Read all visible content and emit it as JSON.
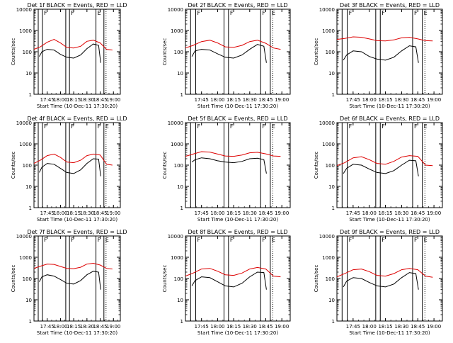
{
  "colors": {
    "events": "#000000",
    "lld": "#dd0000",
    "frame": "#000000"
  },
  "chart_data": [
    {
      "type": "line",
      "title": "Det 1f BLACK = Events, RED = LLD",
      "xlabel": "Start Time (10-Dec-11 17:30:20)",
      "ylabel": "Counts/sec",
      "x_ticks": [
        "17:45",
        "18:00",
        "18:15",
        "18:30",
        "18:45",
        "19:00"
      ],
      "y_ticks": [
        "1",
        "10",
        "100",
        "1000",
        "10000"
      ],
      "y_scale": "log",
      "ylim": [
        1,
        10000
      ],
      "markers": [
        "F",
        "F",
        "E"
      ],
      "series": [
        {
          "color": "red",
          "x": [
            17.5,
            17.62,
            17.75,
            17.88,
            18.0,
            18.12,
            18.25,
            18.38,
            18.5,
            18.62,
            18.75,
            18.87,
            18.98
          ],
          "y": [
            130,
            170,
            280,
            380,
            260,
            160,
            150,
            180,
            310,
            350,
            260,
            130,
            120
          ]
        },
        {
          "color": "black",
          "x": [
            17.6,
            17.65,
            17.75,
            17.88,
            18.0,
            18.12,
            18.25,
            18.38,
            18.5,
            18.62,
            18.72,
            18.76
          ],
          "y": [
            60,
            100,
            130,
            120,
            75,
            55,
            50,
            70,
            140,
            230,
            200,
            30
          ]
        }
      ]
    },
    {
      "type": "line",
      "title": "Det 2f BLACK = Events, RED = LLD",
      "xlabel": "Start Time (10-Dec-11 17:30:20)",
      "ylabel": "Counts/sec",
      "x_ticks": [
        "17:45",
        "18:00",
        "18:15",
        "18:30",
        "18:45",
        "19:00"
      ],
      "y_ticks": [
        "1",
        "10",
        "100",
        "1000",
        "10000"
      ],
      "y_scale": "log",
      "ylim": [
        1,
        10000
      ],
      "markers": [
        "F",
        "F",
        "F",
        "E"
      ],
      "series": [
        {
          "color": "red",
          "x": [
            17.5,
            17.62,
            17.75,
            17.88,
            18.0,
            18.12,
            18.25,
            18.38,
            18.5,
            18.62,
            18.75,
            18.87,
            18.98
          ],
          "y": [
            150,
            200,
            300,
            350,
            260,
            170,
            160,
            200,
            300,
            350,
            250,
            150,
            130
          ]
        },
        {
          "color": "black",
          "x": [
            17.6,
            17.65,
            17.75,
            17.88,
            18.0,
            18.12,
            18.25,
            18.38,
            18.5,
            18.62,
            18.72,
            18.76
          ],
          "y": [
            60,
            110,
            130,
            120,
            80,
            55,
            50,
            70,
            130,
            220,
            180,
            30
          ]
        }
      ]
    },
    {
      "type": "line",
      "title": "Det 3f BLACK = Events, RED = LLD",
      "xlabel": "Start Time (10-Dec-11 17:30:20)",
      "ylabel": "Counts/sec",
      "x_ticks": [
        "17:45",
        "18:00",
        "18:15",
        "18:30",
        "18:45",
        "19:00"
      ],
      "y_ticks": [
        "1",
        "10",
        "100",
        "1000",
        "10000"
      ],
      "y_scale": "log",
      "ylim": [
        1,
        10000
      ],
      "markers": [
        "F",
        "F",
        "F",
        "E"
      ],
      "series": [
        {
          "color": "red",
          "x": [
            17.5,
            17.62,
            17.75,
            17.88,
            18.0,
            18.12,
            18.25,
            18.38,
            18.5,
            18.62,
            18.75,
            18.87,
            18.98
          ],
          "y": [
            380,
            420,
            500,
            480,
            400,
            330,
            320,
            360,
            450,
            480,
            400,
            330,
            320
          ]
        },
        {
          "color": "black",
          "x": [
            17.6,
            17.65,
            17.75,
            17.88,
            18.0,
            18.12,
            18.25,
            18.38,
            18.5,
            18.62,
            18.72,
            18.76
          ],
          "y": [
            40,
            70,
            110,
            100,
            60,
            45,
            40,
            55,
            110,
            190,
            170,
            30
          ]
        }
      ]
    },
    {
      "type": "line",
      "title": "Det 4f BLACK = Events, RED = LLD",
      "xlabel": "Start Time (10-Dec-11 17:30:20)",
      "ylabel": "Counts/sec",
      "x_ticks": [
        "17:45",
        "18:00",
        "18:15",
        "18:30",
        "18:45",
        "19:00"
      ],
      "y_ticks": [
        "1",
        "10",
        "100",
        "1000",
        "10000"
      ],
      "y_scale": "log",
      "ylim": [
        1,
        10000
      ],
      "markers": [
        "F",
        "F",
        "F",
        "E"
      ],
      "series": [
        {
          "color": "red",
          "x": [
            17.5,
            17.62,
            17.75,
            17.88,
            18.0,
            18.12,
            18.25,
            18.38,
            18.5,
            18.62,
            18.75,
            18.87,
            18.98
          ],
          "y": [
            120,
            170,
            280,
            330,
            230,
            140,
            130,
            170,
            280,
            330,
            300,
            110,
            100
          ]
        },
        {
          "color": "black",
          "x": [
            17.6,
            17.65,
            17.75,
            17.88,
            18.0,
            18.12,
            18.25,
            18.38,
            18.5,
            18.62,
            18.72,
            18.76
          ],
          "y": [
            45,
            80,
            120,
            110,
            70,
            45,
            40,
            60,
            120,
            200,
            190,
            30
          ]
        }
      ]
    },
    {
      "type": "line",
      "title": "Det 5f BLACK = Events, RED = LLD",
      "xlabel": "Start Time (10-Dec-11 17:30:20)",
      "ylabel": "Counts/sec",
      "x_ticks": [
        "17:45",
        "18:00",
        "18:15",
        "18:30",
        "18:45",
        "19:00"
      ],
      "y_ticks": [
        "1",
        "10",
        "100",
        "1000",
        "10000"
      ],
      "y_scale": "log",
      "ylim": [
        1,
        10000
      ],
      "markers": [
        "F",
        "F",
        "F",
        "E"
      ],
      "series": [
        {
          "color": "red",
          "x": [
            17.5,
            17.62,
            17.75,
            17.88,
            18.0,
            18.12,
            18.25,
            18.38,
            18.5,
            18.62,
            18.75,
            18.87,
            18.98
          ],
          "y": [
            260,
            330,
            430,
            410,
            330,
            270,
            260,
            300,
            380,
            400,
            340,
            270,
            260
          ]
        },
        {
          "color": "black",
          "x": [
            17.6,
            17.65,
            17.75,
            17.88,
            18.0,
            18.12,
            18.25,
            18.38,
            18.5,
            18.62,
            18.72,
            18.76
          ],
          "y": [
            140,
            180,
            220,
            200,
            160,
            140,
            130,
            150,
            200,
            210,
            180,
            40
          ]
        }
      ]
    },
    {
      "type": "line",
      "title": "Det 6f BLACK = Events, RED = LLD",
      "xlabel": "Start Time (10-Dec-11 17:30:20)",
      "ylabel": "Counts/sec",
      "x_ticks": [
        "17:45",
        "18:00",
        "18:15",
        "18:30",
        "18:45",
        "19:00"
      ],
      "y_ticks": [
        "1",
        "10",
        "100",
        "1000",
        "10000"
      ],
      "y_scale": "log",
      "ylim": [
        1,
        10000
      ],
      "markers": [
        "F",
        "F",
        "F",
        "E"
      ],
      "series": [
        {
          "color": "red",
          "x": [
            17.5,
            17.62,
            17.75,
            17.88,
            18.0,
            18.12,
            18.25,
            18.38,
            18.5,
            18.62,
            18.75,
            18.87,
            18.98
          ],
          "y": [
            95,
            130,
            220,
            250,
            180,
            120,
            110,
            150,
            240,
            280,
            260,
            100,
            95
          ]
        },
        {
          "color": "black",
          "x": [
            17.6,
            17.65,
            17.75,
            17.88,
            18.0,
            18.12,
            18.25,
            18.38,
            18.5,
            18.62,
            18.72,
            18.76
          ],
          "y": [
            40,
            70,
            110,
            100,
            65,
            45,
            40,
            55,
            100,
            170,
            160,
            30
          ]
        }
      ]
    },
    {
      "type": "line",
      "title": "Det 7f BLACK = Events, RED = LLD",
      "xlabel": "Start Time (10-Dec-11 17:30:20)",
      "ylabel": "Counts/sec",
      "x_ticks": [
        "17:45",
        "18:00",
        "18:15",
        "18:30",
        "18:45",
        "19:00"
      ],
      "y_ticks": [
        "1",
        "10",
        "100",
        "1000",
        "10000"
      ],
      "y_scale": "log",
      "ylim": [
        1,
        10000
      ],
      "markers": [
        "F",
        "F",
        "F",
        "E"
      ],
      "series": [
        {
          "color": "red",
          "x": [
            17.5,
            17.62,
            17.75,
            17.88,
            18.0,
            18.12,
            18.25,
            18.38,
            18.5,
            18.62,
            18.75,
            18.87,
            18.98
          ],
          "y": [
            300,
            380,
            480,
            460,
            370,
            300,
            290,
            340,
            480,
            520,
            430,
            300,
            280
          ]
        },
        {
          "color": "black",
          "x": [
            17.6,
            17.65,
            17.75,
            17.88,
            18.0,
            18.12,
            18.25,
            18.38,
            18.5,
            18.62,
            18.72,
            18.76
          ],
          "y": [
            70,
            120,
            150,
            130,
            90,
            60,
            55,
            80,
            150,
            220,
            200,
            30
          ]
        }
      ]
    },
    {
      "type": "line",
      "title": "Det 8f BLACK = Events, RED = LLD",
      "xlabel": "Start Time (10-Dec-11 17:30:20)",
      "ylabel": "Counts/sec",
      "x_ticks": [
        "17:45",
        "18:00",
        "18:15",
        "18:30",
        "18:45",
        "19:00"
      ],
      "y_ticks": [
        "1",
        "10",
        "100",
        "1000",
        "10000"
      ],
      "y_scale": "log",
      "ylim": [
        1,
        10000
      ],
      "markers": [
        "F",
        "F",
        "F",
        "E"
      ],
      "series": [
        {
          "color": "red",
          "x": [
            17.5,
            17.62,
            17.75,
            17.88,
            18.0,
            18.12,
            18.25,
            18.38,
            18.5,
            18.62,
            18.75,
            18.87,
            18.98
          ],
          "y": [
            130,
            180,
            280,
            300,
            220,
            150,
            140,
            180,
            280,
            330,
            280,
            130,
            120
          ]
        },
        {
          "color": "black",
          "x": [
            17.6,
            17.65,
            17.75,
            17.88,
            18.0,
            18.12,
            18.25,
            18.38,
            18.5,
            18.62,
            18.72,
            18.76
          ],
          "y": [
            45,
            80,
            120,
            110,
            70,
            45,
            40,
            60,
            120,
            200,
            190,
            30
          ]
        }
      ]
    },
    {
      "type": "line",
      "title": "Det 9f BLACK = Events, RED = LLD",
      "xlabel": "Start Time (10-Dec-11 17:30:20)",
      "ylabel": "Counts/sec",
      "x_ticks": [
        "17:45",
        "18:00",
        "18:15",
        "18:30",
        "18:45",
        "19:00"
      ],
      "y_ticks": [
        "1",
        "10",
        "100",
        "1000",
        "10000"
      ],
      "y_scale": "log",
      "ylim": [
        1,
        10000
      ],
      "markers": [
        "F",
        "F",
        "F",
        "E"
      ],
      "series": [
        {
          "color": "red",
          "x": [
            17.5,
            17.62,
            17.75,
            17.88,
            18.0,
            18.12,
            18.25,
            18.38,
            18.5,
            18.62,
            18.75,
            18.87,
            18.98
          ],
          "y": [
            120,
            170,
            260,
            280,
            210,
            140,
            130,
            170,
            260,
            300,
            260,
            130,
            115
          ]
        },
        {
          "color": "black",
          "x": [
            17.6,
            17.65,
            17.75,
            17.88,
            18.0,
            18.12,
            18.25,
            18.38,
            18.5,
            18.62,
            18.72,
            18.76
          ],
          "y": [
            40,
            75,
            110,
            100,
            65,
            45,
            40,
            55,
            110,
            190,
            170,
            30
          ]
        }
      ]
    }
  ]
}
